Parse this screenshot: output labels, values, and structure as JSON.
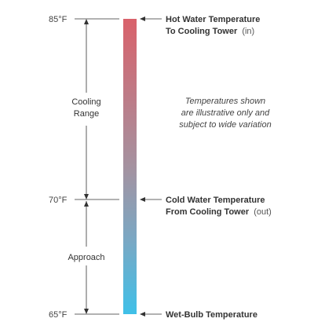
{
  "temperatures": {
    "top": "85°F",
    "middle": "70°F",
    "bottom": "65°F"
  },
  "ranges": {
    "cooling_line1": "Cooling",
    "cooling_line2": "Range",
    "approach": "Approach"
  },
  "callouts": {
    "hot_line1": "Hot Water Temperature",
    "hot_line2": "To Cooling Tower",
    "hot_suffix": "(in)",
    "cold_line1": "Cold Water Temperature",
    "cold_line2": "From Cooling Tower",
    "cold_suffix": "(out)",
    "wetbulb": "Wet-Bulb Temperature"
  },
  "note": {
    "line1": "Temperatures shown",
    "line2": "are illustrative only and",
    "line3": "subject to wide variation"
  },
  "colors": {
    "gradient_top": "#d9626b",
    "gradient_mid": "#8fa3b5",
    "gradient_bottom": "#3fc0e8"
  }
}
